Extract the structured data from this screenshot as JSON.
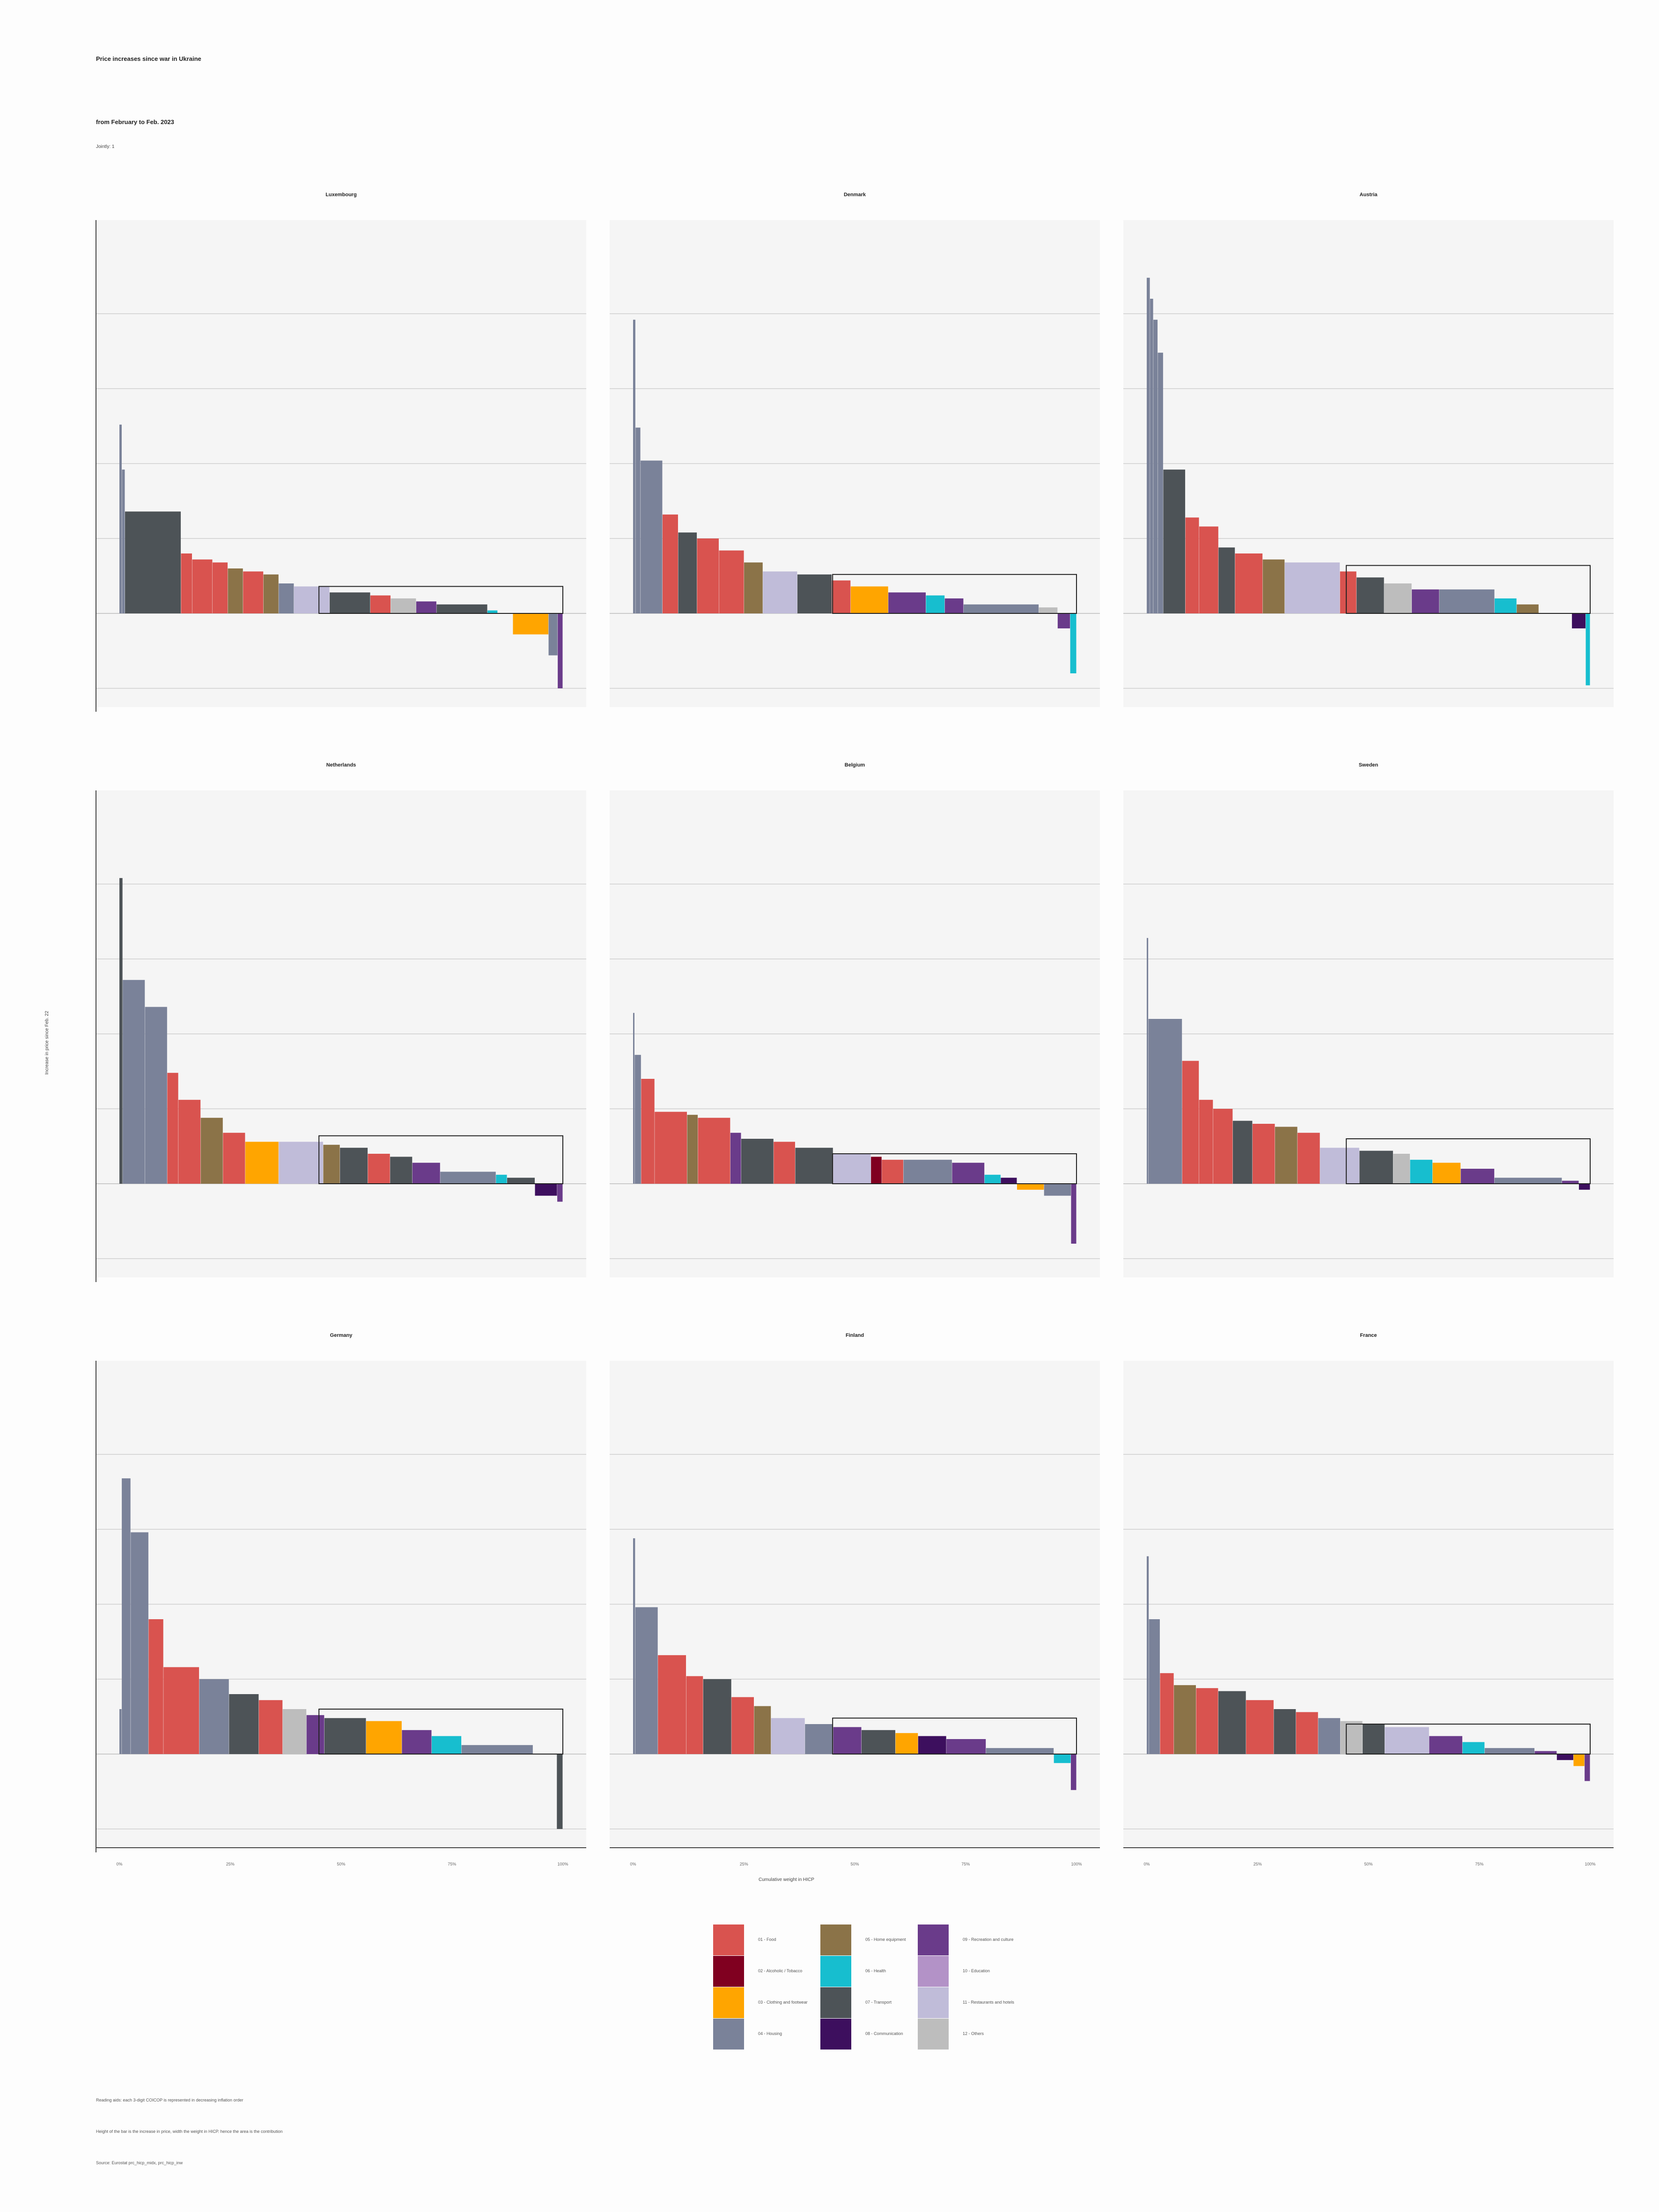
{
  "title": "Price increases since war in Ukraine",
  "subtitle": "from February to Feb. 2023",
  "note_top": "Jointly: 1",
  "y_axis_label": "Increase in price since Feb. 22",
  "x_axis_label": "Cumulative weight in HICP",
  "colors": {
    "food": "#d9534f",
    "alcohol": "#800020",
    "clothing": "#ffa500",
    "housing": "#7a8299",
    "furnishings": "#8b7348",
    "health": "#17becf",
    "transport": "#4d5357",
    "communication": "#3d0f5e",
    "recreation": "#6a3b8a",
    "education": "#b392c7",
    "restaurants": "#c0bcd9",
    "misc": "#bdbdbd"
  },
  "footnotes": [
    "Reading aids: each 3-digit COICOP is represented in decreasing inflation order",
    "Height of the bar is the increase in price, width the weight in HICP. hence the area is the contribution",
    "Source: Eurostat prc_hicp_midx, prc_hicp_inw"
  ],
  "chart_data": {
    "type": "bar",
    "description_type": "variable-width bar (marimekko)",
    "x": {
      "label": "Cumulative weight in HICP",
      "range": [
        0,
        1
      ],
      "ticks": [
        "0%",
        "25%",
        "50%",
        "75%",
        "100%"
      ]
    },
    "y": {
      "label": "Increase in price since Feb. 22",
      "range": [
        -0.25,
        1.25
      ],
      "grid": true
    },
    "legend": [
      {
        "key": "food",
        "label": "01 - Food"
      },
      {
        "key": "alcohol",
        "label": "02 - Alcoholic / Tobacco"
      },
      {
        "key": "clothing",
        "label": "03 - Clothing and footwear"
      },
      {
        "key": "housing",
        "label": "04 - Housing"
      },
      {
        "key": "furnishings",
        "label": "05 - Home equipment"
      },
      {
        "key": "health",
        "label": "06 - Health"
      },
      {
        "key": "transport",
        "label": "07 - Transport"
      },
      {
        "key": "communication",
        "label": "08 - Communication"
      },
      {
        "key": "recreation",
        "label": "09 - Recreation and culture"
      },
      {
        "key": "education",
        "label": "10 - Education"
      },
      {
        "key": "restaurants",
        "label": "11 - Restaurants and hotels"
      },
      {
        "key": "misc",
        "label": "12 - Others"
      }
    ],
    "panels": [
      {
        "country": "Luxembourg",
        "average": 0.09,
        "segments": [
          [
            "housing",
            0.005,
            0.63
          ],
          [
            "housing",
            0.006,
            0.48
          ],
          [
            "transport",
            0.11,
            0.34
          ],
          [
            "food",
            0.022,
            0.2
          ],
          [
            "food",
            0.04,
            0.18
          ],
          [
            "food",
            0.03,
            0.17
          ],
          [
            "furnishings",
            0.03,
            0.15
          ],
          [
            "food",
            0.04,
            0.14
          ],
          [
            "furnishings",
            0.03,
            0.13
          ],
          [
            "housing",
            0.03,
            0.1
          ],
          [
            "restaurants",
            0.07,
            0.09
          ],
          [
            "transport",
            0.08,
            0.07
          ],
          [
            "food",
            0.04,
            0.06
          ],
          [
            "misc",
            0.05,
            0.05
          ],
          [
            "recreation",
            0.04,
            0.04
          ],
          [
            "transport",
            0.1,
            0.03
          ],
          [
            "health",
            0.02,
            0.01
          ],
          [
            "recreation",
            0.03,
            0.0
          ],
          [
            "clothing",
            0.07,
            -0.07
          ],
          [
            "housing",
            0.018,
            -0.14
          ],
          [
            "recreation",
            0.01,
            -0.25
          ]
        ]
      },
      {
        "country": "Denmark",
        "average": 0.13,
        "segments": [
          [
            "housing",
            0.004,
            0.98
          ],
          [
            "housing",
            0.008,
            0.62
          ],
          [
            "housing",
            0.035,
            0.51
          ],
          [
            "food",
            0.025,
            0.33
          ],
          [
            "transport",
            0.03,
            0.27
          ],
          [
            "food",
            0.035,
            0.25
          ],
          [
            "food",
            0.04,
            0.21
          ],
          [
            "furnishings",
            0.03,
            0.17
          ],
          [
            "restaurants",
            0.055,
            0.14
          ],
          [
            "transport",
            0.055,
            0.13
          ],
          [
            "food",
            0.03,
            0.11
          ],
          [
            "clothing",
            0.06,
            0.09
          ],
          [
            "recreation",
            0.06,
            0.07
          ],
          [
            "health",
            0.03,
            0.06
          ],
          [
            "recreation",
            0.03,
            0.05
          ],
          [
            "housing",
            0.12,
            0.03
          ],
          [
            "misc",
            0.03,
            0.02
          ],
          [
            "recreation",
            0.02,
            -0.05
          ],
          [
            "health",
            0.01,
            -0.2
          ]
        ]
      },
      {
        "country": "Austria",
        "average": 0.16,
        "segments": [
          [
            "housing",
            0.006,
            1.12
          ],
          [
            "housing",
            0.006,
            1.05
          ],
          [
            "housing",
            0.008,
            0.98
          ],
          [
            "housing",
            0.01,
            0.87
          ],
          [
            "transport",
            0.04,
            0.48
          ],
          [
            "food",
            0.025,
            0.32
          ],
          [
            "food",
            0.035,
            0.29
          ],
          [
            "transport",
            0.03,
            0.22
          ],
          [
            "food",
            0.05,
            0.2
          ],
          [
            "furnishings",
            0.04,
            0.18
          ],
          [
            "restaurants",
            0.1,
            0.17
          ],
          [
            "food",
            0.03,
            0.14
          ],
          [
            "transport",
            0.05,
            0.12
          ],
          [
            "misc",
            0.05,
            0.1
          ],
          [
            "recreation",
            0.05,
            0.08
          ],
          [
            "housing",
            0.1,
            0.08
          ],
          [
            "health",
            0.04,
            0.05
          ],
          [
            "furnishings",
            0.04,
            0.03
          ],
          [
            "clothing",
            0.06,
            0.0
          ],
          [
            "communication",
            0.025,
            -0.05
          ],
          [
            "health",
            0.008,
            -0.24
          ]
        ]
      },
      {
        "country": "Netherlands",
        "average": 0.16,
        "segments": [
          [
            "transport",
            0.006,
            1.02
          ],
          [
            "housing",
            0.04,
            0.68
          ],
          [
            "housing",
            0.04,
            0.59
          ],
          [
            "food",
            0.02,
            0.37
          ],
          [
            "food",
            0.04,
            0.28
          ],
          [
            "furnishings",
            0.04,
            0.22
          ],
          [
            "food",
            0.04,
            0.17
          ],
          [
            "clothing",
            0.06,
            0.14
          ],
          [
            "restaurants",
            0.08,
            0.14
          ],
          [
            "furnishings",
            0.03,
            0.13
          ],
          [
            "transport",
            0.05,
            0.12
          ],
          [
            "food",
            0.04,
            0.1
          ],
          [
            "transport",
            0.04,
            0.09
          ],
          [
            "recreation",
            0.05,
            0.07
          ],
          [
            "housing",
            0.1,
            0.04
          ],
          [
            "health",
            0.02,
            0.03
          ],
          [
            "transport",
            0.05,
            0.02
          ],
          [
            "communication",
            0.04,
            -0.04
          ],
          [
            "recreation",
            0.01,
            -0.06
          ]
        ]
      },
      {
        "country": "Belgium",
        "average": 0.1,
        "segments": [
          [
            "housing",
            0.003,
            0.57
          ],
          [
            "housing",
            0.012,
            0.43
          ],
          [
            "food",
            0.025,
            0.35
          ],
          [
            "food",
            0.06,
            0.24
          ],
          [
            "furnishings",
            0.02,
            0.23
          ],
          [
            "food",
            0.06,
            0.22
          ],
          [
            "recreation",
            0.02,
            0.17
          ],
          [
            "transport",
            0.06,
            0.15
          ],
          [
            "food",
            0.04,
            0.14
          ],
          [
            "transport",
            0.07,
            0.12
          ],
          [
            "restaurants",
            0.07,
            0.1
          ],
          [
            "alcohol",
            0.02,
            0.09
          ],
          [
            "food",
            0.04,
            0.08
          ],
          [
            "housing",
            0.09,
            0.08
          ],
          [
            "recreation",
            0.06,
            0.07
          ],
          [
            "health",
            0.03,
            0.03
          ],
          [
            "communication",
            0.03,
            0.02
          ],
          [
            "clothing",
            0.05,
            -0.02
          ],
          [
            "housing",
            0.05,
            -0.04
          ],
          [
            "recreation",
            0.01,
            -0.2
          ]
        ]
      },
      {
        "country": "Sweden",
        "average": 0.15,
        "segments": [
          [
            "housing",
            0.003,
            0.82
          ],
          [
            "housing",
            0.06,
            0.55
          ],
          [
            "food",
            0.03,
            0.41
          ],
          [
            "food",
            0.025,
            0.28
          ],
          [
            "food",
            0.035,
            0.25
          ],
          [
            "transport",
            0.035,
            0.21
          ],
          [
            "food",
            0.04,
            0.2
          ],
          [
            "furnishings",
            0.04,
            0.19
          ],
          [
            "food",
            0.04,
            0.17
          ],
          [
            "restaurants",
            0.07,
            0.12
          ],
          [
            "transport",
            0.06,
            0.11
          ],
          [
            "misc",
            0.03,
            0.1
          ],
          [
            "health",
            0.04,
            0.08
          ],
          [
            "clothing",
            0.05,
            0.07
          ],
          [
            "recreation",
            0.06,
            0.05
          ],
          [
            "housing",
            0.12,
            0.02
          ],
          [
            "recreation",
            0.03,
            0.01
          ],
          [
            "communication",
            0.02,
            -0.02
          ]
        ]
      },
      {
        "country": "Germany",
        "average": 0.15,
        "segments": [
          [
            "housing",
            0.004,
            0.15
          ],
          [
            "housing",
            0.015,
            0.92
          ],
          [
            "housing",
            0.03,
            0.74
          ],
          [
            "food",
            0.025,
            0.45
          ],
          [
            "food",
            0.06,
            0.29
          ],
          [
            "housing",
            0.05,
            0.25
          ],
          [
            "transport",
            0.05,
            0.2
          ],
          [
            "food",
            0.04,
            0.18
          ],
          [
            "misc",
            0.04,
            0.15
          ],
          [
            "recreation",
            0.03,
            0.13
          ],
          [
            "transport",
            0.07,
            0.12
          ],
          [
            "clothing",
            0.06,
            0.11
          ],
          [
            "recreation",
            0.05,
            0.08
          ],
          [
            "health",
            0.05,
            0.06
          ],
          [
            "housing",
            0.12,
            0.03
          ],
          [
            "recreation",
            0.04,
            0.0
          ],
          [
            "transport",
            0.01,
            -0.25
          ]
        ]
      },
      {
        "country": "Finland",
        "average": 0.12,
        "segments": [
          [
            "housing",
            0.004,
            0.72
          ],
          [
            "housing",
            0.04,
            0.49
          ],
          [
            "food",
            0.05,
            0.33
          ],
          [
            "food",
            0.03,
            0.26
          ],
          [
            "transport",
            0.05,
            0.25
          ],
          [
            "food",
            0.04,
            0.19
          ],
          [
            "furnishings",
            0.03,
            0.16
          ],
          [
            "restaurants",
            0.06,
            0.12
          ],
          [
            "housing",
            0.05,
            0.1
          ],
          [
            "recreation",
            0.05,
            0.09
          ],
          [
            "transport",
            0.06,
            0.08
          ],
          [
            "clothing",
            0.04,
            0.07
          ],
          [
            "communication",
            0.05,
            0.06
          ],
          [
            "recreation",
            0.07,
            0.05
          ],
          [
            "housing",
            0.12,
            0.02
          ],
          [
            "health",
            0.03,
            -0.03
          ],
          [
            "recreation",
            0.01,
            -0.12
          ]
        ]
      },
      {
        "country": "France",
        "average": 0.1,
        "segments": [
          [
            "housing",
            0.004,
            0.66
          ],
          [
            "housing",
            0.02,
            0.45
          ],
          [
            "food",
            0.025,
            0.27
          ],
          [
            "furnishings",
            0.04,
            0.23
          ],
          [
            "food",
            0.04,
            0.22
          ],
          [
            "transport",
            0.05,
            0.21
          ],
          [
            "food",
            0.05,
            0.18
          ],
          [
            "transport",
            0.04,
            0.15
          ],
          [
            "food",
            0.04,
            0.14
          ],
          [
            "housing",
            0.04,
            0.12
          ],
          [
            "misc",
            0.04,
            0.11
          ],
          [
            "transport",
            0.04,
            0.1
          ],
          [
            "restaurants",
            0.08,
            0.09
          ],
          [
            "recreation",
            0.06,
            0.06
          ],
          [
            "health",
            0.04,
            0.04
          ],
          [
            "housing",
            0.09,
            0.02
          ],
          [
            "recreation",
            0.04,
            0.01
          ],
          [
            "communication",
            0.03,
            -0.02
          ],
          [
            "clothing",
            0.02,
            -0.04
          ],
          [
            "recreation",
            0.01,
            -0.09
          ]
        ]
      }
    ]
  }
}
